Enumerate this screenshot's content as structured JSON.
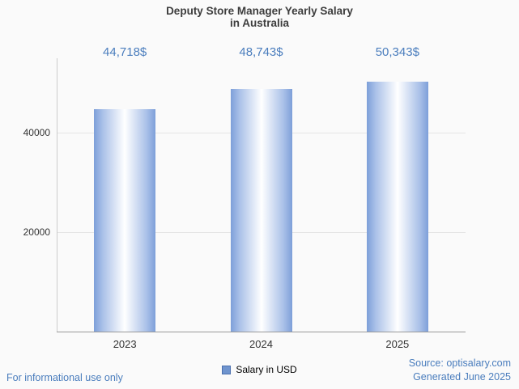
{
  "title": {
    "line1": "Deputy Store Manager Yearly Salary",
    "line2": "in Australia"
  },
  "chart_data": {
    "type": "bar",
    "title": "Deputy Store Manager Yearly Salary in Australia",
    "categories": [
      "2023",
      "2024",
      "2025"
    ],
    "values": [
      44718,
      48743,
      50343
    ],
    "value_labels": [
      "44,718$",
      "48,743$",
      "50,343$"
    ],
    "series": [
      {
        "name": "Salary in USD",
        "values": [
          44718,
          48743,
          50343
        ]
      }
    ],
    "xlabel": "",
    "ylabel": "",
    "ylim": [
      0,
      55000
    ],
    "yticks": [
      20000,
      40000
    ],
    "grid": true,
    "legend_position": "bottom"
  },
  "legend": {
    "label": "Salary in USD"
  },
  "footer": {
    "left": "For informational use only",
    "source": "Source: optisalary.com",
    "generated": "Generated June 2025"
  },
  "colors": {
    "accent_blue": "#4a7dbd",
    "bar_edge": "#7d9fd9",
    "bar_center": "#ffffff",
    "gridline": "#e5e5e5",
    "axis": "#999999",
    "text": "#333333"
  }
}
